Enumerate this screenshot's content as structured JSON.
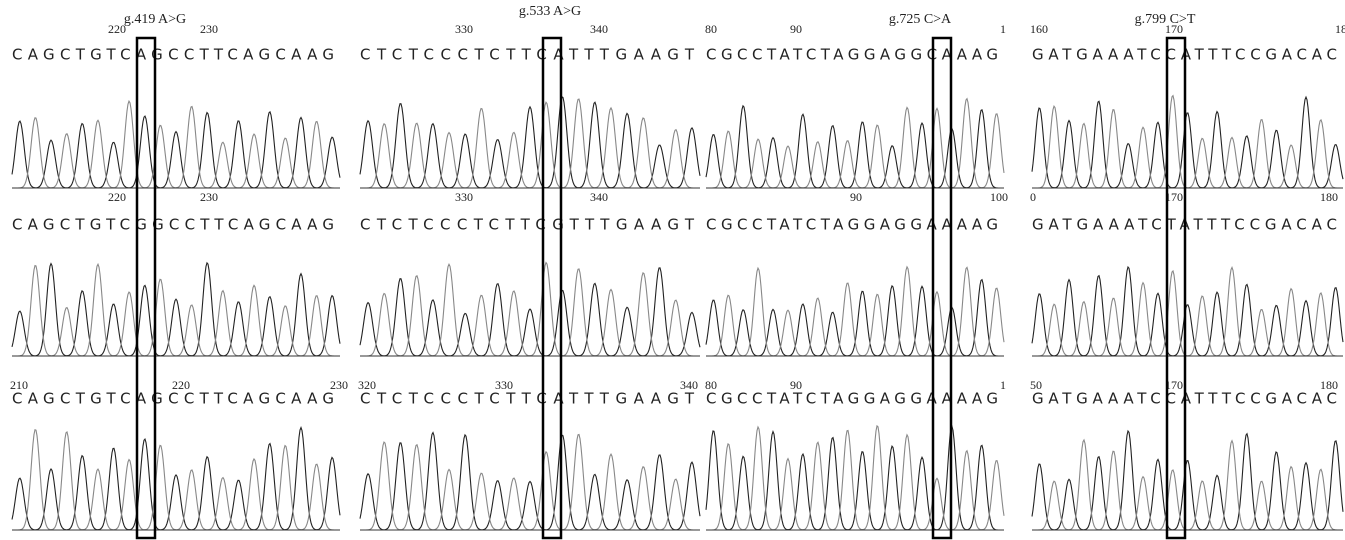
{
  "columns": [
    {
      "title": "g.419 A>G",
      "rows": [
        {
          "positions": [
            "220",
            "230"
          ],
          "sequence": "CAGCTGTCAGCCTTCAGCAAG"
        },
        {
          "positions": [
            "220",
            "230"
          ],
          "sequence": "CAGCTGTCGGCCTTCAGCAAG"
        },
        {
          "positions": [
            "210",
            "220",
            "230"
          ],
          "sequence": "CAGCTGTCAGCCTTCAGCAAG"
        }
      ]
    },
    {
      "title": "g.533 A>G",
      "rows": [
        {
          "positions": [
            "330",
            "340"
          ],
          "sequence": "CTCTCCCTCTTCATTTGAAGT"
        },
        {
          "positions": [
            "330",
            "340"
          ],
          "sequence": "CTCTCCCTCTTCGTTTGAAGT"
        },
        {
          "positions": [
            "320",
            "330",
            "340"
          ],
          "sequence": "CTCTCCCTCTTCATTTGAAGT"
        }
      ]
    },
    {
      "title": "g.725 C>A",
      "rows": [
        {
          "positions": [
            "80",
            "90",
            "1"
          ],
          "sequence": "CGCCTATCTAGGAGGCAAAG"
        },
        {
          "positions": [
            "90",
            "100"
          ],
          "sequence": "CGCCTATCTAGGAGGAAAAG"
        },
        {
          "positions": [
            "80",
            "90",
            "1"
          ],
          "sequence": "CGCCTATCTAGGAGGAAAAG"
        }
      ]
    },
    {
      "title": "g.799 C>T",
      "rows": [
        {
          "positions": [
            "160",
            "170",
            "18"
          ],
          "sequence": "GATGAAATCCATTTCCGACAC"
        },
        {
          "positions": [
            "0",
            "170",
            "180"
          ],
          "sequence": "GATGAAATCTATTTCCGACAC"
        },
        {
          "positions": [
            "50",
            "170",
            "180"
          ],
          "sequence": "GATGAAATCCATTTCCGACAC"
        }
      ]
    }
  ]
}
